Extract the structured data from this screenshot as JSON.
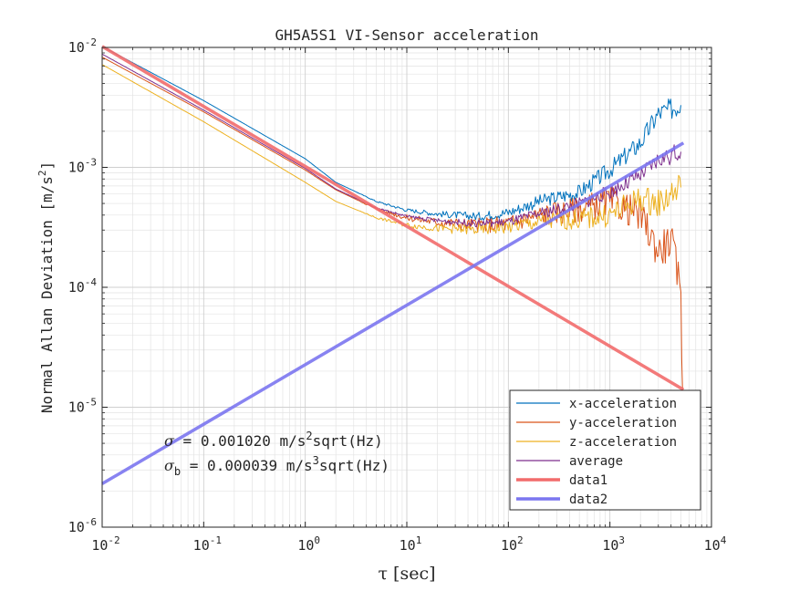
{
  "chart_data": {
    "type": "line",
    "title": "GH5A5S1 VI-Sensor acceleration",
    "xlabel": "τ [sec]",
    "ylabel": "Normal Allan Deviation [m/s^2]",
    "xscale": "log",
    "yscale": "log",
    "xlim": [
      0.01,
      10000
    ],
    "ylim": [
      1e-06,
      0.01
    ],
    "grid": true,
    "legend_position": "bottom-right",
    "x_ticks": [
      {
        "base": "10",
        "exp": "-2"
      },
      {
        "base": "10",
        "exp": "-1"
      },
      {
        "base": "10",
        "exp": "0"
      },
      {
        "base": "10",
        "exp": "1"
      },
      {
        "base": "10",
        "exp": "2"
      },
      {
        "base": "10",
        "exp": "3"
      },
      {
        "base": "10",
        "exp": "4"
      }
    ],
    "y_ticks": [
      {
        "base": "10",
        "exp": "-6"
      },
      {
        "base": "10",
        "exp": "-5"
      },
      {
        "base": "10",
        "exp": "-4"
      },
      {
        "base": "10",
        "exp": "-3"
      },
      {
        "base": "10",
        "exp": "-2"
      }
    ],
    "series": [
      {
        "name": "x-acceleration",
        "color": "#0072BD",
        "width": 1,
        "x": [
          0.01,
          0.1,
          1,
          2,
          5,
          10,
          20,
          50,
          100,
          200,
          500,
          1000,
          2000,
          3000,
          5000
        ],
        "y": [
          0.0102,
          0.0036,
          0.00118,
          0.00075,
          0.00052,
          0.00044,
          0.00041,
          0.00039,
          0.00042,
          0.00052,
          0.00062,
          0.00095,
          0.0016,
          0.0028,
          0.0033
        ]
      },
      {
        "name": "y-acceleration",
        "color": "#D95319",
        "width": 1,
        "x": [
          0.01,
          0.1,
          1,
          2,
          5,
          10,
          20,
          50,
          100,
          200,
          500,
          1000,
          2000,
          3000,
          4000,
          4700,
          5000,
          5200
        ],
        "y": [
          0.0083,
          0.0029,
          0.00095,
          0.00065,
          0.00045,
          0.00038,
          0.00035,
          0.00033,
          0.00034,
          0.0004,
          0.00045,
          0.00052,
          0.0004,
          0.0002,
          0.00025,
          0.00012,
          9e-05,
          1.3e-05
        ]
      },
      {
        "name": "z-acceleration",
        "color": "#EDB120",
        "width": 1,
        "x": [
          0.01,
          0.1,
          1,
          2,
          5,
          10,
          20,
          50,
          100,
          200,
          500,
          1000,
          2000,
          3000,
          5000
        ],
        "y": [
          0.0072,
          0.0024,
          0.00075,
          0.00052,
          0.00038,
          0.00033,
          0.00031,
          0.0003,
          0.00032,
          0.00035,
          0.00037,
          0.0004,
          0.00055,
          0.0005,
          0.00068
        ]
      },
      {
        "name": "average",
        "color": "#7E2F8E",
        "width": 1,
        "x": [
          0.01,
          0.1,
          1,
          2,
          5,
          10,
          20,
          50,
          100,
          200,
          500,
          1000,
          2000,
          3000,
          5000
        ],
        "y": [
          0.0088,
          0.003,
          0.00098,
          0.00066,
          0.00046,
          0.00039,
          0.00036,
          0.00034,
          0.00035,
          0.00041,
          0.0005,
          0.00062,
          0.00085,
          0.00115,
          0.00135
        ]
      },
      {
        "name": "data1",
        "color": "#F26B6B",
        "width": 3.5,
        "x": [
          0.01,
          5300
        ],
        "y": [
          0.0102,
          1.4e-05
        ]
      },
      {
        "name": "data2",
        "color": "#7B76F0",
        "width": 3.5,
        "x": [
          0.01,
          5300
        ],
        "y": [
          2.3e-06,
          0.0016
        ]
      }
    ],
    "annotations": [
      {
        "symbol": "σ",
        "sub": "",
        "text_before": " = 0.001020 m/s",
        "sup": "2",
        "text_after": "sqrt(Hz)"
      },
      {
        "symbol": "σ",
        "sub": "b",
        "text_before": " = 0.000039 m/s",
        "sup": "3",
        "text_after": "sqrt(Hz)"
      }
    ]
  }
}
